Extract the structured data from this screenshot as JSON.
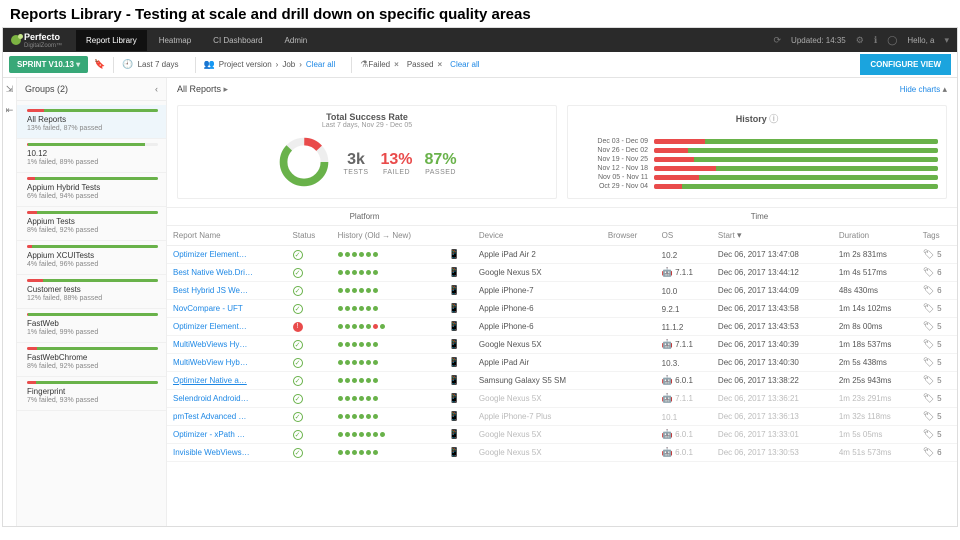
{
  "slide_title": "Reports Library - Testing at scale and drill down on specific quality areas",
  "brand": {
    "name": "Perfecto",
    "sub": "DigitalZoom™"
  },
  "nav": [
    {
      "label": "Report Library",
      "active": true
    },
    {
      "label": "Heatmap"
    },
    {
      "label": "CI Dashboard"
    },
    {
      "label": "Admin"
    }
  ],
  "updated": "Updated: 14:35",
  "user_greeting": "Hello, a",
  "sprint_label": "SPRINT V10.13",
  "filters": {
    "time": "Last 7 days",
    "group_by": "Project version",
    "then": "Job",
    "clear": "Clear all",
    "status": [
      {
        "l": "Failed"
      },
      {
        "l": "Passed"
      }
    ],
    "config_btn": "CONFIGURE VIEW"
  },
  "sidebar": {
    "title": "Groups (2)",
    "items": [
      {
        "title": "All Reports",
        "sub": "13% failed, 87% passed",
        "fail": 13,
        "pass": 87,
        "sel": true
      },
      {
        "title": "10.12",
        "sub": "1% failed, 89% passed",
        "fail": 1,
        "pass": 89
      },
      {
        "title": "Appium Hybrid Tests",
        "sub": "6% failed, 94% passed",
        "fail": 6,
        "pass": 94
      },
      {
        "title": "Appium Tests",
        "sub": "8% failed, 92% passed",
        "fail": 8,
        "pass": 92
      },
      {
        "title": "Appium XCUITests",
        "sub": "4% failed, 96% passed",
        "fail": 4,
        "pass": 96
      },
      {
        "title": "Customer tests",
        "sub": "12% failed, 88% passed",
        "fail": 12,
        "pass": 88
      },
      {
        "title": "FastWeb",
        "sub": "1% failed, 99% passed",
        "fail": 1,
        "pass": 99
      },
      {
        "title": "FastWebChrome",
        "sub": "8% failed, 92% passed",
        "fail": 8,
        "pass": 92
      },
      {
        "title": "Fingerprint",
        "sub": "7% failed, 93% passed",
        "fail": 7,
        "pass": 93
      }
    ]
  },
  "content": {
    "title": "All Reports",
    "hide_charts": "Hide charts",
    "success": {
      "title": "Total Success Rate",
      "sub": "Last 7 days, Nov 29 - Dec 05",
      "tests": "3k",
      "tests_lbl": "TESTS",
      "failed": "13%",
      "failed_lbl": "FAILED",
      "passed": "87%",
      "passed_lbl": "PASSED",
      "donut": {
        "fail": 13,
        "pass": 87,
        "color_pass": "#69b24a",
        "color_fail": "#e94b4b"
      }
    },
    "history": {
      "title": "History",
      "rows": [
        {
          "range": "Dec 03 - Dec 09",
          "fail": 18,
          "pass": 82
        },
        {
          "range": "Nov 26 - Dec 02",
          "fail": 12,
          "pass": 88
        },
        {
          "range": "Nov 19 - Nov 25",
          "fail": 14,
          "pass": 86
        },
        {
          "range": "Nov 12 - Nov 18",
          "fail": 22,
          "pass": 78
        },
        {
          "range": "Nov 05 - Nov 11",
          "fail": 16,
          "pass": 84
        },
        {
          "range": "Oct 29 - Nov 04",
          "fail": 10,
          "pass": 90
        }
      ]
    },
    "tabs": [
      "Platform",
      "Time"
    ],
    "columns": [
      "Report Name",
      "Status",
      "History (Old → New)",
      "",
      "Device",
      "Browser",
      "OS",
      "Start",
      "Duration",
      "Tags"
    ],
    "rows": [
      {
        "name": "Optimizer Element…",
        "status": "p",
        "hist": "pppppp",
        "dev": "mobile",
        "device": "Apple iPad Air 2",
        "os_icon": "apple",
        "os": "10.2",
        "start": "Dec 06, 2017 13:47:08",
        "dur": "1m 2s 831ms",
        "tags": 5
      },
      {
        "name": "Best Native Web.Dri…",
        "status": "p",
        "hist": "pppppp",
        "dev": "mobile",
        "device": "Google Nexus 5X",
        "os_icon": "android",
        "os": "7.1.1",
        "start": "Dec 06, 2017 13:44:12",
        "dur": "1m 4s 517ms",
        "tags": 6
      },
      {
        "name": "Best Hybrid JS We…",
        "status": "p",
        "hist": "pppppp",
        "dev": "mobile",
        "device": "Apple iPhone-7",
        "os_icon": "apple",
        "os": "10.0",
        "start": "Dec 06, 2017 13:44:09",
        "dur": "48s 430ms",
        "tags": 6
      },
      {
        "name": "NovCompare - UFT",
        "status": "p",
        "hist": "pppppp",
        "dev": "mobile",
        "device": "Apple iPhone-6",
        "os_icon": "apple",
        "os": "9.2.1",
        "start": "Dec 06, 2017 13:43:58",
        "dur": "1m 14s 102ms",
        "tags": 5
      },
      {
        "name": "Optimizer Element…",
        "status": "f",
        "hist": "pppppfp",
        "dev": "mobile",
        "device": "Apple iPhone-6",
        "os_icon": "apple",
        "os": "11.1.2",
        "start": "Dec 06, 2017 13:43:53",
        "dur": "2m 8s 00ms",
        "tags": 5
      },
      {
        "name": "MultiWebViews Hy…",
        "status": "p",
        "hist": "pppppp",
        "dev": "mobile",
        "device": "Google Nexus 5X",
        "os_icon": "android",
        "os": "7.1.1",
        "start": "Dec 06, 2017 13:40:39",
        "dur": "1m 18s 537ms",
        "tags": 5
      },
      {
        "name": "MultiWebView Hyb…",
        "status": "p",
        "hist": "pppppp",
        "dev": "mobile",
        "device": "Apple iPad Air",
        "os_icon": "apple",
        "os": "10.3.",
        "start": "Dec 06, 2017 13:40:30",
        "dur": "2m 5s 438ms",
        "tags": 5
      },
      {
        "name": "Optimizer Native a…",
        "status": "p",
        "hist": "pppppp",
        "dev": "mobile",
        "device": "Samsung Galaxy S5 SM",
        "os_icon": "android",
        "os": "6.0.1",
        "start": "Dec 06, 2017 13:38:22",
        "dur": "2m 25s 943ms",
        "tags": 5,
        "hl": true
      },
      {
        "name": "Selendroid Android…",
        "status": "p",
        "hist": "pppppp",
        "dev": "mobile",
        "device": "Google Nexus 5X",
        "os_icon": "android",
        "os": "7.1.1",
        "start": "Dec 06, 2017 13:36:21",
        "dur": "1m 23s 291ms",
        "tags": 5,
        "mute": true
      },
      {
        "name": "pmTest Advanced …",
        "status": "p",
        "hist": "pppppp",
        "dev": "mobile",
        "device": "Apple iPhone-7 Plus",
        "os_icon": "apple",
        "os": "10.1",
        "start": "Dec 06, 2017 13:36:13",
        "dur": "1m 32s 118ms",
        "tags": 5,
        "mute": true
      },
      {
        "name": "Optimizer - xPath …",
        "status": "p",
        "hist": "ppppppp",
        "dev": "mobile",
        "device": "Google Nexus 5X",
        "os_icon": "android",
        "os": "6.0.1",
        "start": "Dec 06, 2017 13:33:01",
        "dur": "1m 5s 05ms",
        "tags": 5,
        "mute": true
      },
      {
        "name": "Invisible WebViews…",
        "status": "p",
        "hist": "pppppp",
        "dev": "mobile",
        "device": "Google Nexus 5X",
        "os_icon": "android",
        "os": "6.0.1",
        "start": "Dec 06, 2017 13:30:53",
        "dur": "4m 51s 573ms",
        "tags": 6,
        "mute": true
      }
    ]
  }
}
